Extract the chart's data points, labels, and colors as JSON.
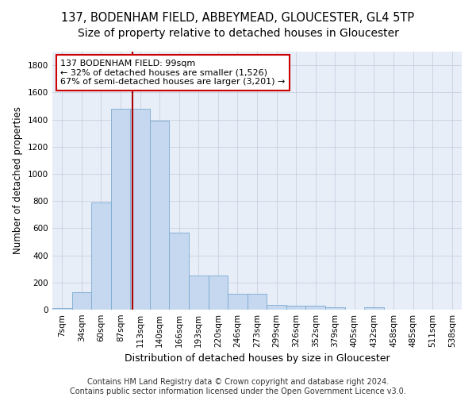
{
  "title": "137, BODENHAM FIELD, ABBEYMEAD, GLOUCESTER, GL4 5TP",
  "subtitle": "Size of property relative to detached houses in Gloucester",
  "xlabel": "Distribution of detached houses by size in Gloucester",
  "ylabel": "Number of detached properties",
  "footer_line1": "Contains HM Land Registry data © Crown copyright and database right 2024.",
  "footer_line2": "Contains public sector information licensed under the Open Government Licence v3.0.",
  "categories": [
    "7sqm",
    "34sqm",
    "60sqm",
    "87sqm",
    "113sqm",
    "140sqm",
    "166sqm",
    "193sqm",
    "220sqm",
    "246sqm",
    "273sqm",
    "299sqm",
    "326sqm",
    "352sqm",
    "379sqm",
    "405sqm",
    "432sqm",
    "458sqm",
    "485sqm",
    "511sqm",
    "538sqm"
  ],
  "bar_values": [
    10,
    130,
    790,
    1480,
    1480,
    1390,
    570,
    250,
    250,
    115,
    115,
    35,
    30,
    30,
    18,
    0,
    20,
    0,
    0,
    0,
    0
  ],
  "bar_color": "#c5d8f0",
  "bar_edge_color": "#7aaad0",
  "property_line_x": 3.62,
  "annotation_line1": "137 BODENHAM FIELD: 99sqm",
  "annotation_line2": "← 32% of detached houses are smaller (1,526)",
  "annotation_line3": "67% of semi-detached houses are larger (3,201) →",
  "annotation_box_color": "#ffffff",
  "annotation_box_edge_color": "#cc0000",
  "vline_color": "#aa0000",
  "ylim": [
    0,
    1900
  ],
  "yticks": [
    0,
    200,
    400,
    600,
    800,
    1000,
    1200,
    1400,
    1600,
    1800
  ],
  "background_color": "#e8eef8",
  "grid_color": "#c8d0e0",
  "title_fontsize": 10.5,
  "xlabel_fontsize": 9,
  "ylabel_fontsize": 8.5,
  "tick_fontsize": 7.5,
  "annotation_fontsize": 8,
  "footer_fontsize": 7
}
